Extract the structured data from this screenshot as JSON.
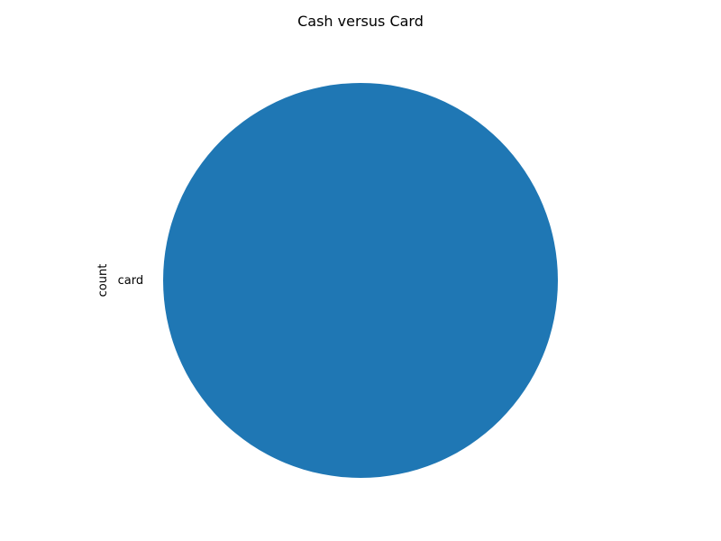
{
  "chart_data": {
    "type": "pie",
    "title": "Cash versus Card",
    "ylabel": "count",
    "categories": [
      "card"
    ],
    "values": [
      1
    ],
    "colors": [
      "#1f77b4"
    ],
    "legend": "none"
  }
}
